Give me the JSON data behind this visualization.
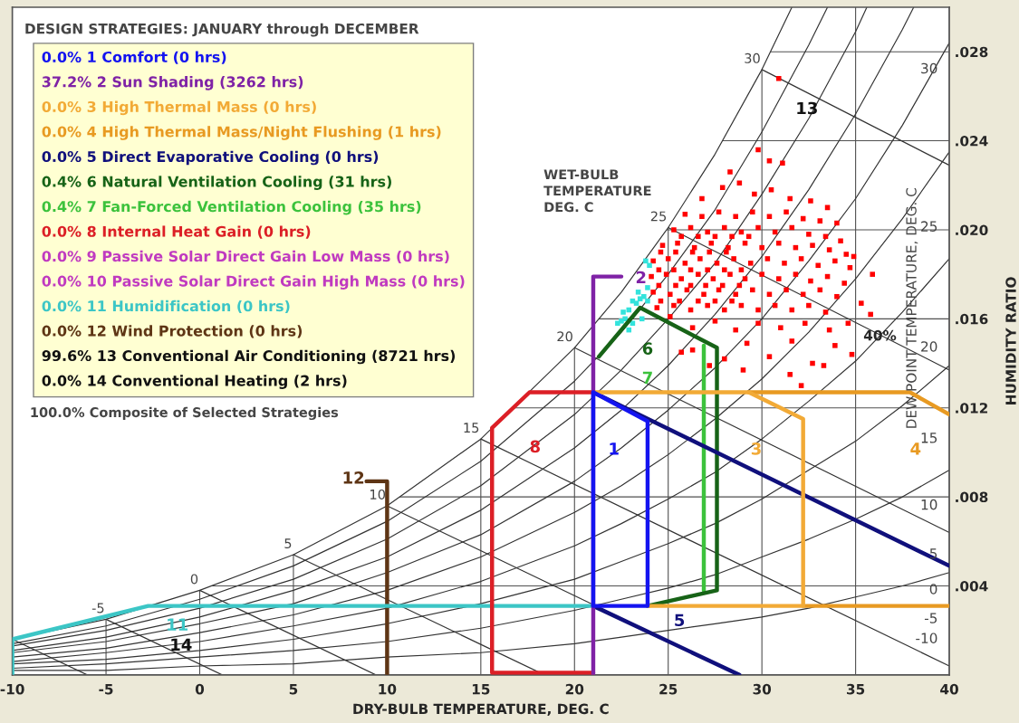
{
  "chart_data": {
    "type": "scatter",
    "legend_title": "DESIGN STRATEGIES: JANUARY through DECEMBER",
    "xlabel": "DRY-BULB TEMPERATURE, DEG. C",
    "ylabel": "HUMIDITY RATIO",
    "xlim": [
      -10,
      40
    ],
    "xticks": [
      -10,
      -5,
      0,
      5,
      10,
      15,
      20,
      25,
      30,
      35,
      40
    ],
    "ylim": [
      0,
      0.03
    ],
    "yticks": [
      {
        "value": 0.004,
        "label": ".004"
      },
      {
        "value": 0.008,
        "label": ".008"
      },
      {
        "value": 0.012,
        "label": ".012"
      },
      {
        "value": 0.016,
        "label": ".016"
      },
      {
        "value": 0.02,
        "label": ".020"
      },
      {
        "value": 0.024,
        "label": ".024"
      },
      {
        "value": 0.028,
        "label": ".028"
      }
    ],
    "grid": true,
    "legend": "top left",
    "annotations": [
      "100.0% Composite of Selected Strategies",
      "WET-BULB\nTEMPERATURE\nDEG. C",
      "DEW POINT TEMPERATURE, DEG. C",
      "-10",
      "-5",
      "0",
      "5",
      "10",
      "15",
      "20",
      "25",
      "30",
      "40%",
      "1",
      "2",
      "3",
      "4",
      "5",
      "6",
      "7",
      "8",
      "11",
      "12",
      "13",
      "14",
      {
        "text": "30",
        "x": 30,
        "y": 0.0272
      },
      {
        "text": "25",
        "x": 25,
        "y": 0.0201
      },
      {
        "text": "20",
        "x": 20,
        "y": 0.0147
      },
      {
        "text": "15",
        "x": 15,
        "y": 0.0106
      },
      {
        "text": "10",
        "x": 10,
        "y": 0.0076
      },
      {
        "text": "5",
        "x": 5,
        "y": 0.0054
      },
      {
        "text": "0",
        "x": 0,
        "y": 0.0038
      },
      {
        "text": "-5",
        "x": -5,
        "y": 0.0025
      }
    ],
    "series": [
      {
        "type": "line",
        "color": "#333333",
        "x": [
          -10,
          -5,
          0,
          5,
          10,
          15,
          20,
          22.5,
          25,
          27.5,
          30,
          31.6
        ],
        "values": [
          0.0016,
          0.0025,
          0.0038,
          0.0054,
          0.0076,
          0.0106,
          0.0147,
          0.0172,
          0.0201,
          0.0234,
          0.0272,
          0.03
        ]
      },
      {
        "type": "line",
        "color": "#333333",
        "x": [
          -10,
          -5,
          0,
          5,
          10,
          15,
          20,
          22.5,
          25,
          27.5,
          30,
          32.5,
          33.5
        ],
        "values": [
          0.0014,
          0.0022,
          0.0034,
          0.0049,
          0.0069,
          0.0096,
          0.0132,
          0.0154,
          0.018,
          0.0209,
          0.0244,
          0.0283,
          0.03
        ]
      },
      {
        "type": "line",
        "color": "#333333",
        "x": [
          -10,
          -5,
          0,
          5,
          10,
          15,
          20,
          22.5,
          25,
          27.5,
          30,
          32.5,
          35,
          35.6
        ],
        "values": [
          0.0013,
          0.002,
          0.003,
          0.0043,
          0.0061,
          0.0085,
          0.0117,
          0.0137,
          0.016,
          0.0185,
          0.0216,
          0.025,
          0.0289,
          0.03
        ]
      },
      {
        "type": "line",
        "color": "#333333",
        "x": [
          -10,
          -5,
          0,
          5,
          10,
          15,
          20,
          22.5,
          25,
          27.5,
          30,
          32.5,
          35,
          37.5,
          38.1
        ],
        "values": [
          0.0011,
          0.0017,
          0.0026,
          0.0038,
          0.0053,
          0.0074,
          0.0102,
          0.0119,
          0.0139,
          0.0162,
          0.0188,
          0.0218,
          0.0252,
          0.029,
          0.03
        ]
      },
      {
        "type": "line",
        "color": "#333333",
        "x": [
          -10,
          -5,
          0,
          5,
          10,
          15,
          20,
          22.5,
          25,
          27.5,
          30,
          32.5,
          35,
          37.5,
          40
        ],
        "values": [
          0.001,
          0.0015,
          0.0023,
          0.0032,
          0.0046,
          0.0063,
          0.0087,
          0.0102,
          0.0119,
          0.0138,
          0.016,
          0.0186,
          0.0214,
          0.0247,
          0.0284
        ]
      },
      {
        "type": "line",
        "color": "#333333",
        "x": [
          -10,
          -5,
          0,
          5,
          10,
          15,
          20,
          22.5,
          25,
          27.5,
          30,
          32.5,
          35,
          37.5,
          40
        ],
        "values": [
          0.0008,
          0.0012,
          0.0019,
          0.0027,
          0.0038,
          0.0053,
          0.0073,
          0.0085,
          0.0099,
          0.0115,
          0.0133,
          0.0154,
          0.0178,
          0.0205,
          0.0235
        ]
      },
      {
        "type": "line",
        "color": "#333333",
        "x": [
          -10,
          -5,
          0,
          5,
          10,
          15,
          20,
          22.5,
          25,
          27.5,
          30,
          32.5,
          35,
          37.5,
          40
        ],
        "values": [
          0.0006,
          0.001,
          0.0015,
          0.0022,
          0.003,
          0.0042,
          0.0058,
          0.0068,
          0.0079,
          0.0091,
          0.0106,
          0.0123,
          0.0141,
          0.0163,
          0.0187
        ]
      },
      {
        "type": "line",
        "color": "#333333",
        "x": [
          -10,
          -5,
          0,
          5,
          10,
          15,
          20,
          22.5,
          25,
          27.5,
          30,
          32.5,
          35,
          37.5,
          40
        ],
        "values": [
          0.0005,
          0.0007,
          0.0011,
          0.0016,
          0.0023,
          0.0032,
          0.0043,
          0.0051,
          0.0059,
          0.0068,
          0.0079,
          0.0092,
          0.0105,
          0.0121,
          0.0139
        ]
      },
      {
        "type": "line",
        "color": "#333333",
        "x": [
          -10,
          -5,
          0,
          5,
          10,
          15,
          20,
          22.5,
          25,
          27.5,
          30,
          32.5,
          35,
          37.5,
          40
        ],
        "values": [
          0.0003,
          0.0005,
          0.0008,
          0.0011,
          0.0015,
          0.0021,
          0.0029,
          0.0034,
          0.0039,
          0.0045,
          0.0053,
          0.0061,
          0.007,
          0.008,
          0.0092
        ]
      },
      {
        "type": "line",
        "color": "#333333",
        "x": [
          -10,
          -5,
          0,
          5,
          10,
          15,
          20,
          22.5,
          25,
          27.5,
          30,
          32.5,
          35,
          37.5,
          40
        ],
        "values": [
          0.0002,
          0.0002,
          0.0004,
          0.0005,
          0.0008,
          0.001,
          0.0014,
          0.0017,
          0.002,
          0.0023,
          0.0026,
          0.003,
          0.0035,
          0.004,
          0.0046
        ]
      },
      {
        "type": "line",
        "color": "#333333",
        "x": [
          30,
          40
        ],
        "values": [
          0.0272,
          0.0229
        ]
      },
      {
        "type": "line",
        "color": "#333333",
        "x": [
          25,
          40
        ],
        "values": [
          0.0201,
          0.0137
        ]
      },
      {
        "type": "line",
        "color": "#333333",
        "x": [
          20,
          40
        ],
        "values": [
          0.0147,
          0.0064
        ]
      },
      {
        "type": "line",
        "color": "#333333",
        "x": [
          15,
          40
        ],
        "values": [
          0.0106,
          0.0004
        ]
      },
      {
        "type": "line",
        "color": "#333333",
        "x": [
          10,
          28.8
        ],
        "values": [
          0.0076,
          0
        ]
      },
      {
        "type": "line",
        "color": "#333333",
        "x": [
          5,
          18.4
        ],
        "values": [
          0.0054,
          0
        ]
      },
      {
        "type": "line",
        "color": "#333333",
        "x": [
          0,
          9.4
        ],
        "values": [
          0.0038,
          0
        ]
      },
      {
        "type": "line",
        "color": "#333333",
        "x": [
          -5,
          1.2
        ],
        "values": [
          0.0025,
          0
        ]
      },
      {
        "type": "line",
        "color": "#333333",
        "x": [
          -10,
          -6.0
        ],
        "values": [
          0.0016,
          0
        ]
      },
      {
        "color": "#ff0000",
        "marker": "square",
        "x": [
          26.8,
          27.9,
          28.8,
          29.6,
          30.5,
          31.5,
          32.6,
          33.5,
          25.9,
          26.8,
          27.7,
          28.6,
          29.5,
          30.4,
          31.3,
          32.2,
          33.1,
          34.0,
          25.3,
          26.2,
          27.1,
          28.0,
          28.9,
          29.8,
          30.7,
          31.6,
          32.5,
          33.4,
          34.2,
          24.7,
          25.5,
          26.4,
          27.3,
          28.2,
          29.1,
          30.0,
          30.9,
          31.8,
          32.7,
          33.6,
          34.5,
          24.2,
          25.0,
          25.9,
          26.7,
          27.6,
          28.5,
          29.4,
          30.3,
          31.2,
          32.1,
          33.0,
          33.9,
          34.7,
          24.1,
          24.9,
          25.7,
          26.6,
          27.4,
          28.3,
          29.1,
          30.0,
          30.9,
          31.8,
          32.6,
          33.5,
          34.4,
          24.2,
          25.1,
          26.0,
          26.9,
          27.7,
          28.6,
          29.5,
          30.4,
          31.3,
          32.2,
          33.1,
          34.0,
          24.4,
          25.3,
          26.2,
          27.1,
          28.0,
          28.9,
          29.8,
          30.7,
          31.6,
          32.5,
          33.4,
          25.1,
          26.3,
          27.5,
          28.6,
          29.8,
          31.0,
          32.3,
          33.6,
          34.6,
          26.3,
          29.2,
          31.6,
          33.9,
          25.7,
          28.0,
          30.4,
          32.7,
          34.8,
          29.0,
          31.5,
          33.3,
          32.1,
          27.2,
          29.8,
          30.4,
          31.1,
          28.3,
          30.9,
          34.9,
          35.9,
          35.3,
          35.8,
          25.7,
          26.6,
          27.5,
          28.4,
          29.3,
          24.6,
          25.4,
          26.3,
          27.2,
          28.1,
          24.5,
          25.3,
          26.2,
          27.1,
          28.0,
          28.9,
          24.5,
          25.4,
          26.2,
          27.0,
          27.9,
          28.8,
          24.6,
          25.6,
          26.6,
          27.5,
          28.4
        ],
        "values": [
          0.0214,
          0.0219,
          0.0221,
          0.0216,
          0.0218,
          0.0214,
          0.0213,
          0.021,
          0.0207,
          0.0206,
          0.0208,
          0.0206,
          0.0208,
          0.0206,
          0.0208,
          0.0205,
          0.0204,
          0.0203,
          0.02,
          0.0201,
          0.0199,
          0.0201,
          0.0199,
          0.0201,
          0.0199,
          0.0201,
          0.0198,
          0.0197,
          0.0195,
          0.0193,
          0.0194,
          0.0192,
          0.0194,
          0.0192,
          0.0194,
          0.0192,
          0.0194,
          0.0192,
          0.0193,
          0.0191,
          0.0189,
          0.0186,
          0.0187,
          0.0185,
          0.0187,
          0.0185,
          0.0187,
          0.0185,
          0.0187,
          0.0185,
          0.0187,
          0.0184,
          0.0186,
          0.0183,
          0.0179,
          0.018,
          0.0178,
          0.018,
          0.0178,
          0.018,
          0.0178,
          0.018,
          0.0178,
          0.018,
          0.0177,
          0.0179,
          0.0176,
          0.0172,
          0.0171,
          0.0173,
          0.0171,
          0.0173,
          0.0171,
          0.0173,
          0.0171,
          0.0173,
          0.0171,
          0.0173,
          0.017,
          0.0165,
          0.0166,
          0.0164,
          0.0166,
          0.0164,
          0.0166,
          0.0164,
          0.0166,
          0.0164,
          0.0166,
          0.0163,
          0.0161,
          0.0156,
          0.0159,
          0.0155,
          0.0158,
          0.0156,
          0.0158,
          0.0155,
          0.0158,
          0.0146,
          0.0149,
          0.015,
          0.0148,
          0.0145,
          0.0142,
          0.0143,
          0.014,
          0.0144,
          0.0137,
          0.0135,
          0.0139,
          0.013,
          0.0139,
          0.0236,
          0.0231,
          0.023,
          0.0226,
          0.0268,
          0.0188,
          0.018,
          0.0167,
          0.0162,
          0.0197,
          0.0197,
          0.0197,
          0.0197,
          0.0197,
          0.019,
          0.019,
          0.019,
          0.019,
          0.019,
          0.0182,
          0.0182,
          0.0182,
          0.0182,
          0.0182,
          0.0182,
          0.0175,
          0.0175,
          0.0175,
          0.0175,
          0.0175,
          0.0175,
          0.0168,
          0.0168,
          0.0168,
          0.0168,
          0.0168
        ]
      },
      {
        "color": "#33e3dc",
        "marker": "square",
        "x": [
          23.8,
          24.0,
          23.9,
          23.4,
          23.7,
          23.1,
          23.5,
          22.9,
          23.3,
          22.6,
          22.7,
          23.1,
          22.5,
          23.6,
          22.3,
          23.9,
          22.9
        ],
        "values": [
          0.0186,
          0.0184,
          0.0174,
          0.0172,
          0.017,
          0.0168,
          0.0169,
          0.0164,
          0.0167,
          0.0163,
          0.016,
          0.0158,
          0.0159,
          0.016,
          0.0158,
          0.0168,
          0.0155
        ]
      },
      {
        "type": "line",
        "name": "0.0% 1 Comfort (0 hrs)",
        "color": "#1414f0",
        "x": [
          23.9,
          21,
          21,
          23.9,
          23.9,
          21
        ],
        "values": [
          0.0031,
          0.0031,
          0.0127,
          0.0114,
          0.0031,
          0.0031
        ]
      },
      {
        "type": "line",
        "name": "37.2% 2 Sun Shading (3262 hrs)",
        "color": "#7f22a6",
        "x": [
          21,
          21,
          22.5
        ],
        "values": [
          0,
          0.0179,
          0.0179
        ]
      },
      {
        "type": "line",
        "name": "0.0% 3 High Thermal Mass (0 hrs)",
        "color": "#f2aa36",
        "x": [
          23.9,
          32.2,
          32.2,
          29.3,
          21
        ],
        "values": [
          0.0031,
          0.0031,
          0.0115,
          0.0127,
          0.0127
        ]
      },
      {
        "type": "line",
        "name": "0.0% 4 High Thermal Mass/Night Flushing (1 hrs)",
        "color": "#e89a22",
        "x": [
          32.2,
          40,
          null,
          29.3,
          37.9,
          40
        ],
        "values": [
          0.0031,
          0.0031,
          null,
          0.0127,
          0.0127,
          0.0117
        ]
      },
      {
        "type": "line",
        "name": "0.0% 5 Direct Evaporative Cooling (0 hrs)",
        "color": "#10107c",
        "x": [
          40,
          21,
          null,
          21,
          28.8
        ],
        "values": [
          0.0049,
          0.0127,
          null,
          0.0031,
          0
        ]
      },
      {
        "type": "line",
        "name": "0.4% 6 Natural Ventilation Cooling (31 hrs)",
        "color": "#176317",
        "x": [
          23.9,
          27.6,
          27.6,
          23.5,
          21.3
        ],
        "values": [
          0.0031,
          0.0038,
          0.0147,
          0.0165,
          0.0143
        ]
      },
      {
        "type": "line",
        "name": "0.4% 7 Fan-Forced Ventilation Cooling (35 hrs)",
        "color": "#3cc23c",
        "x": [
          26.9,
          26.9
        ],
        "values": [
          0.0038,
          0.0148
        ]
      },
      {
        "type": "line",
        "name": "0.0% 8 Internal Heat Gain (0 hrs)",
        "color": "#dc1f26",
        "x": [
          21,
          17.6,
          15.6,
          15.6,
          21
        ],
        "values": [
          0.0127,
          0.0127,
          0.0111,
          0.0001,
          0.0001
        ]
      },
      {
        "type": "line",
        "name": "0.0% 9 Passive Solar Direct Gain Low Mass (0 hrs)",
        "color": "#c03ac0"
      },
      {
        "type": "line",
        "name": "0.0% 10 Passive Solar Direct Gain High Mass (0 hrs)",
        "color": "#c03ac0"
      },
      {
        "type": "line",
        "name": "0.0% 11 Humidification (0 hrs)",
        "color": "#3cc6c6",
        "x": [
          21,
          -2.75,
          -10,
          -10
        ],
        "values": [
          0.0031,
          0.0031,
          0.0016,
          0
        ]
      },
      {
        "type": "line",
        "name": "0.0% 12 Wind Protection (0 hrs)",
        "color": "#5e3515",
        "x": [
          10,
          10,
          8.9
        ],
        "values": [
          0,
          0.0087,
          0.0087
        ]
      },
      {
        "type": "line",
        "name": "99.6% 13 Conventional Air Conditioning (8721 hrs)",
        "color": "#111111"
      },
      {
        "type": "line",
        "name": "0.0% 14 Conventional Heating (2 hrs)",
        "color": "#111111"
      }
    ]
  }
}
